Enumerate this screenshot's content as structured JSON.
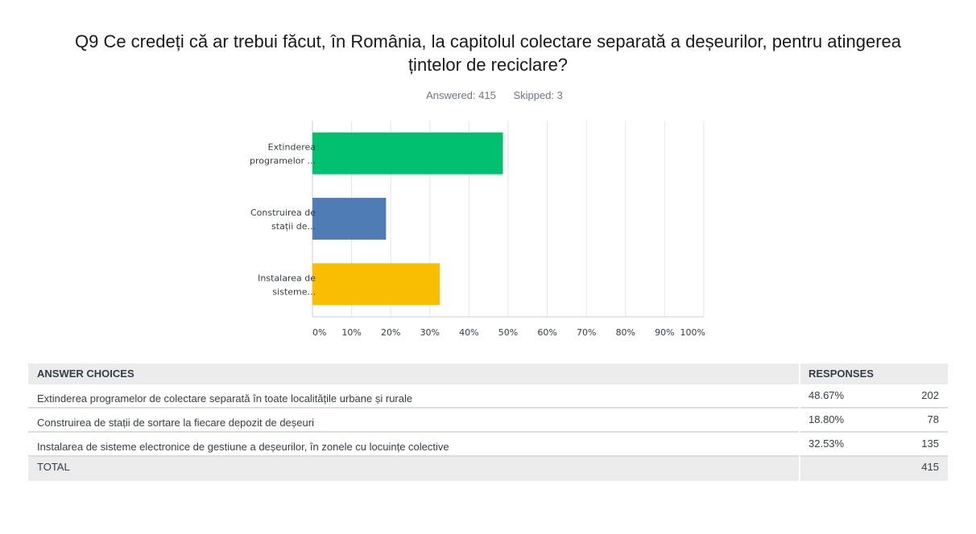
{
  "question": {
    "title": "Q9 Ce credeți că ar trebui făcut, în România, la capitolul colectare separată a deșeurilor, pentru atingerea țintelor de reciclare?",
    "answered": "Answered: 415",
    "skipped": "Skipped: 3"
  },
  "chart_data": {
    "type": "bar",
    "orientation": "horizontal",
    "categories": [
      [
        "Extinderea",
        "programelor ..."
      ],
      [
        "Construirea de",
        "stații de..."
      ],
      [
        "Instalarea de",
        "sisteme..."
      ]
    ],
    "values": [
      48.67,
      18.8,
      32.53
    ],
    "colors": [
      "#00bf6f",
      "#507cb6",
      "#f9be00"
    ],
    "xlim": [
      0,
      100
    ],
    "xticks": [
      "0%",
      "10%",
      "20%",
      "30%",
      "40%",
      "50%",
      "60%",
      "70%",
      "80%",
      "90%",
      "100%"
    ],
    "grid": true
  },
  "table": {
    "headers": [
      "ANSWER CHOICES",
      "RESPONSES"
    ],
    "rows": [
      {
        "choice": "Extinderea programelor de colectare separată în toate localitățile urbane și rurale",
        "percent": "48.67%",
        "count": "202"
      },
      {
        "choice": "Construirea de stații de sortare la fiecare depozit de deșeuri",
        "percent": "18.80%",
        "count": "78"
      },
      {
        "choice": "Instalarea de sisteme electronice de gestiune a deșeurilor, în zonele cu locuințe colective",
        "percent": "32.53%",
        "count": "135"
      }
    ],
    "total_label": "TOTAL",
    "total": "415"
  }
}
